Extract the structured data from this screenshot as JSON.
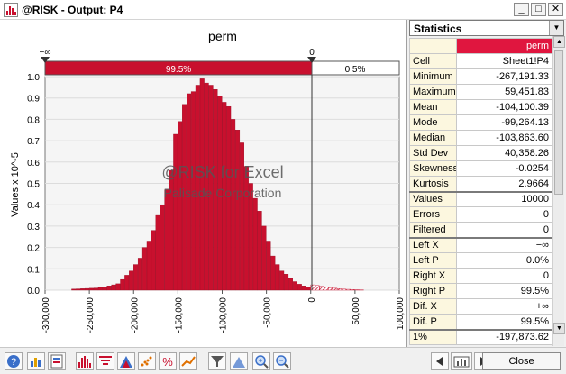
{
  "window": {
    "title": "@RISK - Output: P4"
  },
  "chart_data": {
    "type": "bar",
    "title": "perm",
    "ylabel": "Values x 10^-5",
    "xlabel": "",
    "xlim": [
      -300000,
      100000
    ],
    "ylim": [
      0,
      1.0
    ],
    "x_ticks": [
      "-300,000",
      "-250,000",
      "-200,000",
      "-150,000",
      "-100,000",
      "-50,000",
      "0",
      "50,000",
      "100,000"
    ],
    "y_ticks": [
      "0.0",
      "0.1",
      "0.2",
      "0.3",
      "0.4",
      "0.5",
      "0.6",
      "0.7",
      "0.8",
      "0.9",
      "1.0"
    ],
    "bin_width": 5000,
    "bin_starts": [
      -270000,
      -265000,
      -260000,
      -255000,
      -250000,
      -245000,
      -240000,
      -235000,
      -230000,
      -225000,
      -220000,
      -215000,
      -210000,
      -205000,
      -200000,
      -195000,
      -190000,
      -185000,
      -180000,
      -175000,
      -170000,
      -165000,
      -160000,
      -155000,
      -150000,
      -145000,
      -140000,
      -135000,
      -130000,
      -125000,
      -120000,
      -115000,
      -110000,
      -105000,
      -100000,
      -95000,
      -90000,
      -85000,
      -80000,
      -75000,
      -70000,
      -65000,
      -60000,
      -55000,
      -50000,
      -45000,
      -40000,
      -35000,
      -30000,
      -25000,
      -20000,
      -15000,
      -10000,
      -5000,
      0,
      5000,
      10000,
      15000,
      20000,
      25000,
      30000,
      35000,
      40000,
      45000,
      50000,
      55000
    ],
    "values": [
      0.005,
      0.006,
      0.007,
      0.008,
      0.009,
      0.01,
      0.013,
      0.016,
      0.02,
      0.025,
      0.03,
      0.05,
      0.07,
      0.09,
      0.12,
      0.15,
      0.2,
      0.23,
      0.28,
      0.35,
      0.4,
      0.47,
      0.56,
      0.73,
      0.79,
      0.87,
      0.92,
      0.93,
      0.96,
      0.99,
      0.97,
      0.96,
      0.94,
      0.91,
      0.88,
      0.86,
      0.8,
      0.75,
      0.69,
      0.58,
      0.5,
      0.43,
      0.37,
      0.3,
      0.23,
      0.16,
      0.12,
      0.09,
      0.075,
      0.055,
      0.04,
      0.028,
      0.02,
      0.015,
      0.025,
      0.022,
      0.018,
      0.014,
      0.011,
      0.009,
      0.007,
      0.005,
      0.004,
      0.003,
      0.002,
      0.001
    ],
    "series": [
      {
        "name": "perm",
        "color": "#c8102e"
      }
    ],
    "delimiters": {
      "left_label": "−∞",
      "right_label": "0",
      "left_pct": "99.5%",
      "right_pct": "0.5%",
      "cut_value": 0
    },
    "watermark": [
      "@RISK for Excel",
      "Palisade Corporation"
    ],
    "grid": true
  },
  "stats": {
    "header": "Statistics",
    "column_name": "perm",
    "rows": [
      {
        "label": "Cell",
        "value": "Sheet1!P4"
      },
      {
        "label": "Minimum",
        "value": "-267,191.33"
      },
      {
        "label": "Maximum",
        "value": "59,451.83"
      },
      {
        "label": "Mean",
        "value": "-104,100.39"
      },
      {
        "label": "Mode",
        "value": "-99,264.13"
      },
      {
        "label": "Median",
        "value": "-103,863.60"
      },
      {
        "label": "Std Dev",
        "value": "40,358.26"
      },
      {
        "label": "Skewness",
        "value": "-0.0254"
      },
      {
        "label": "Kurtosis",
        "value": "2.9664"
      },
      {
        "label": "Values",
        "value": "10000"
      },
      {
        "label": "Errors",
        "value": "0"
      },
      {
        "label": "Filtered",
        "value": "0"
      },
      {
        "label": "Left X",
        "value": "−∞"
      },
      {
        "label": "Left P",
        "value": "0.0%"
      },
      {
        "label": "Right X",
        "value": "0"
      },
      {
        "label": "Right P",
        "value": "99.5%"
      },
      {
        "label": "Dif. X",
        "value": "+∞"
      },
      {
        "label": "Dif. P",
        "value": "99.5%"
      },
      {
        "label": "1%",
        "value": "-197,873.62"
      }
    ]
  },
  "toolbar": {
    "close_label": "Close"
  },
  "colors": {
    "accent": "#c8102e",
    "header_red": "#e0163f",
    "label_bg": "#fcf7df"
  }
}
